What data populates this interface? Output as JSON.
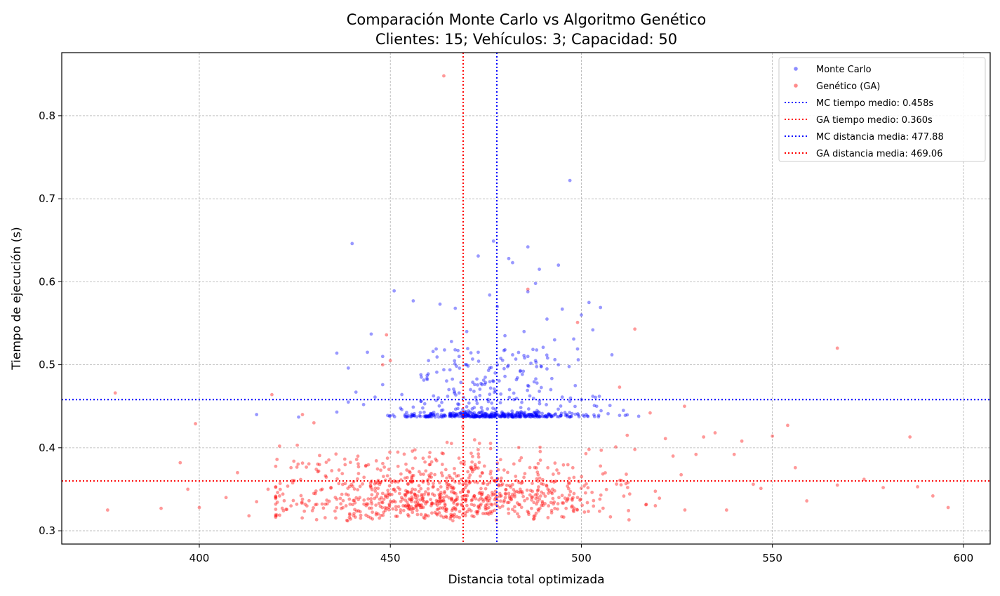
{
  "chart_data": {
    "type": "scatter",
    "title_line1": "Comparación Monte Carlo vs Algoritmo Genético",
    "title_line2": "Clientes: 15; Vehículos: 3; Capacidad: 50",
    "xlabel": "Distancia total optimizada",
    "ylabel": "Tiempo de ejecución (s)",
    "xlim": [
      364,
      607
    ],
    "ylim": [
      0.284,
      0.876
    ],
    "xticks": [
      400,
      450,
      500,
      550,
      600
    ],
    "yticks": [
      0.3,
      0.4,
      0.5,
      0.6,
      0.7,
      0.8
    ],
    "ytick_labels": [
      "0.3",
      "0.4",
      "0.5",
      "0.6",
      "0.7",
      "0.8"
    ],
    "grid": true,
    "legend_position": "top-right",
    "colors": {
      "mc": "#0000ff",
      "ga": "#ff0000"
    },
    "series": [
      {
        "name": "Monte Carlo",
        "color": "#0000ff",
        "points": [
          [
            497,
            0.722
          ],
          [
            440,
            0.646
          ],
          [
            477,
            0.649
          ],
          [
            473,
            0.631
          ],
          [
            486,
            0.642
          ],
          [
            481,
            0.628
          ],
          [
            482,
            0.623
          ],
          [
            489,
            0.615
          ],
          [
            494,
            0.62
          ],
          [
            488,
            0.598
          ],
          [
            451,
            0.589
          ],
          [
            476,
            0.584
          ],
          [
            463,
            0.573
          ],
          [
            502,
            0.575
          ],
          [
            467,
            0.568
          ],
          [
            478,
            0.57
          ],
          [
            495,
            0.567
          ],
          [
            505,
            0.569
          ],
          [
            456,
            0.577
          ],
          [
            486,
            0.588
          ],
          [
            491,
            0.555
          ],
          [
            500,
            0.56
          ],
          [
            445,
            0.537
          ],
          [
            470,
            0.54
          ],
          [
            485,
            0.54
          ],
          [
            503,
            0.542
          ],
          [
            480,
            0.535
          ],
          [
            493,
            0.53
          ],
          [
            498,
            0.531
          ],
          [
            436,
            0.514
          ],
          [
            444,
            0.515
          ],
          [
            448,
            0.51
          ],
          [
            508,
            0.512
          ],
          [
            478,
            0.5
          ],
          [
            415,
            0.44
          ],
          [
            426,
            0.437
          ],
          [
            436,
            0.443
          ],
          [
            439,
            0.455
          ],
          [
            441,
            0.467
          ],
          [
            443,
            0.452
          ],
          [
            446,
            0.461
          ],
          [
            439,
            0.496
          ],
          [
            448,
            0.476
          ],
          [
            462,
            0.519
          ],
          [
            466,
            0.528
          ],
          [
            482,
            0.512
          ],
          [
            490,
            0.521
          ],
          [
            499,
            0.519
          ],
          [
            511,
            0.445
          ],
          [
            515,
            0.438
          ],
          [
            510,
            0.439
          ],
          [
            507,
            0.441
          ],
          [
            504,
            0.45
          ],
          [
            503,
            0.462
          ],
          [
            500,
            0.458
          ],
          [
            497,
            0.456
          ],
          [
            495,
            0.461
          ],
          [
            492,
            0.47
          ],
          [
            489,
            0.468
          ],
          [
            486,
            0.475
          ],
          [
            483,
            0.482
          ],
          [
            480,
            0.486
          ],
          [
            477,
            0.48
          ],
          [
            474,
            0.476
          ],
          [
            471,
            0.47
          ],
          [
            468,
            0.466
          ],
          [
            465,
            0.462
          ],
          [
            462,
            0.457
          ],
          [
            459,
            0.453
          ],
          [
            456,
            0.449
          ],
          [
            453,
            0.446
          ],
          [
            458,
            0.488
          ],
          [
            464,
            0.494
          ],
          [
            470,
            0.5
          ],
          [
            476,
            0.496
          ],
          [
            484,
            0.492
          ],
          [
            488,
            0.505
          ],
          [
            494,
            0.5
          ],
          [
            460,
            0.505
          ],
          [
            468,
            0.51
          ],
          [
            473,
            0.515
          ],
          [
            480,
            0.518
          ],
          [
            486,
            0.51
          ],
          [
            491,
            0.495
          ]
        ]
      },
      {
        "name": "Genético (GA)",
        "color": "#ff0000",
        "points": [
          [
            464,
            0.848
          ],
          [
            376,
            0.325
          ],
          [
            378,
            0.466
          ],
          [
            390,
            0.327
          ],
          [
            395,
            0.382
          ],
          [
            397,
            0.35
          ],
          [
            399,
            0.429
          ],
          [
            400,
            0.328
          ],
          [
            407,
            0.34
          ],
          [
            410,
            0.37
          ],
          [
            413,
            0.318
          ],
          [
            419,
            0.464
          ],
          [
            421,
            0.402
          ],
          [
            424,
            0.376
          ],
          [
            427,
            0.44
          ],
          [
            430,
            0.43
          ],
          [
            449,
            0.536
          ],
          [
            450,
            0.505
          ],
          [
            448,
            0.5
          ],
          [
            486,
            0.591
          ],
          [
            499,
            0.551
          ],
          [
            514,
            0.543
          ],
          [
            510,
            0.473
          ],
          [
            567,
            0.52
          ],
          [
            586,
            0.413
          ],
          [
            596,
            0.328
          ],
          [
            592,
            0.342
          ],
          [
            588,
            0.353
          ],
          [
            579,
            0.352
          ],
          [
            574,
            0.362
          ],
          [
            567,
            0.355
          ],
          [
            559,
            0.336
          ],
          [
            556,
            0.376
          ],
          [
            554,
            0.427
          ],
          [
            550,
            0.414
          ],
          [
            547,
            0.351
          ],
          [
            545,
            0.356
          ],
          [
            542,
            0.408
          ],
          [
            540,
            0.392
          ],
          [
            538,
            0.325
          ],
          [
            535,
            0.418
          ],
          [
            532,
            0.413
          ],
          [
            530,
            0.392
          ],
          [
            527,
            0.45
          ],
          [
            524,
            0.39
          ],
          [
            522,
            0.411
          ],
          [
            518,
            0.442
          ],
          [
            514,
            0.398
          ],
          [
            512,
            0.415
          ],
          [
            509,
            0.401
          ],
          [
            505,
            0.378
          ],
          [
            502,
            0.398
          ],
          [
            499,
            0.34
          ],
          [
            496,
            0.327
          ],
          [
            493,
            0.348
          ],
          [
            490,
            0.356
          ],
          [
            487,
            0.337
          ],
          [
            484,
            0.35
          ],
          [
            481,
            0.345
          ],
          [
            478,
            0.33
          ],
          [
            475,
            0.338
          ],
          [
            472,
            0.342
          ],
          [
            469,
            0.356
          ],
          [
            466,
            0.337
          ],
          [
            463,
            0.34
          ],
          [
            460,
            0.345
          ],
          [
            457,
            0.338
          ],
          [
            454,
            0.342
          ],
          [
            451,
            0.35
          ],
          [
            448,
            0.345
          ],
          [
            445,
            0.335
          ],
          [
            442,
            0.34
          ],
          [
            439,
            0.343
          ],
          [
            436,
            0.338
          ],
          [
            433,
            0.332
          ],
          [
            430,
            0.345
          ],
          [
            427,
            0.338
          ],
          [
            424,
            0.33
          ],
          [
            421,
            0.342
          ],
          [
            418,
            0.35
          ],
          [
            415,
            0.335
          ]
        ]
      }
    ],
    "reference_lines": [
      {
        "label": "MC tiempo medio: 0.458s",
        "orientation": "horizontal",
        "value": 0.458,
        "color": "#0000ff"
      },
      {
        "label": "GA tiempo medio: 0.360s",
        "orientation": "horizontal",
        "value": 0.36,
        "color": "#ff0000"
      },
      {
        "label": "MC distancia media: 477.88",
        "orientation": "vertical",
        "value": 477.88,
        "color": "#0000ff"
      },
      {
        "label": "GA distancia media: 469.06",
        "orientation": "vertical",
        "value": 469.06,
        "color": "#ff0000"
      }
    ],
    "point_clouds": [
      {
        "series": "Monte Carlo",
        "count": 520,
        "x_mean": 477,
        "x_spread": 12,
        "x_min": 435,
        "x_max": 512,
        "y_floor": 0.437,
        "y_spread": 0.0009,
        "tail_share": 0.5,
        "tail_y_range": [
          0.437,
          0.52
        ]
      },
      {
        "series": "Genético (GA)",
        "count": 850,
        "x_mean": 466,
        "x_spread": 22,
        "x_min": 420,
        "x_max": 560,
        "y_floor": 0.311,
        "y_spread": 0.035,
        "y_max": 0.48
      }
    ]
  }
}
